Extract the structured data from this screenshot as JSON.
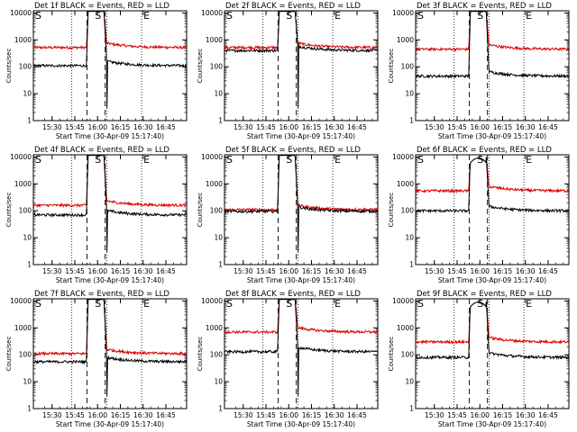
{
  "chart_data": {
    "type": "line",
    "ylabel": "Counts/sec",
    "xlabel": "Start Time (30-Apr-09 15:17:40)",
    "xticks": [
      "15:30",
      "15:45",
      "16:00",
      "16:15",
      "16:30",
      "16:45"
    ],
    "ytick_labels": [
      "1",
      "10",
      "100",
      "1000",
      "10000"
    ],
    "ylim": [
      1,
      12000
    ],
    "xlim_minutes_after_start": [
      0,
      101
    ],
    "yscale": "log",
    "markers": {
      "start": "S",
      "end": "E"
    },
    "legend_text": "BLACK = Events, RED = LLD",
    "colors": {
      "events": "#000000",
      "lld": "#dd0000"
    },
    "event_lines_time": [
      "15:53",
      "16:05"
    ],
    "dotted_lines_time": [
      "15:43",
      "16:06",
      "16:29"
    ],
    "panels": [
      {
        "title": "Det 1f BLACK = Events, RED = LLD",
        "events_level": 110,
        "lld_level": 520,
        "peak_shape": "flat-top",
        "events_spike_down": true
      },
      {
        "title": "Det 2f BLACK = Events, RED = LLD",
        "events_level": 400,
        "lld_level": 520,
        "peak_shape": "flat-top",
        "events_spike_down": true
      },
      {
        "title": "Det 3f BLACK = Events, RED = LLD",
        "events_level": 45,
        "lld_level": 450,
        "peak_shape": "flat-top",
        "events_spike_down": false
      },
      {
        "title": "Det 4f BLACK = Events, RED = LLD",
        "events_level": 70,
        "lld_level": 160,
        "peak_shape": "flat-top",
        "events_spike_down": true
      },
      {
        "title": "Det 5f BLACK = Events, RED = LLD",
        "events_level": 95,
        "lld_level": 110,
        "peak_shape": "flat-top",
        "events_spike_down": true
      },
      {
        "title": "Det 6f BLACK = Events, RED = LLD",
        "events_level": 100,
        "lld_level": 550,
        "peak_shape": "rounded",
        "events_spike_down": false
      },
      {
        "title": "Det 7f BLACK = Events, RED = LLD",
        "events_level": 55,
        "lld_level": 110,
        "peak_shape": "flat-top",
        "events_spike_down": true
      },
      {
        "title": "Det 8f BLACK = Events, RED = LLD",
        "events_level": 130,
        "lld_level": 700,
        "peak_shape": "flat-top",
        "events_spike_down": true
      },
      {
        "title": "Det 9f BLACK = Events, RED = LLD",
        "events_level": 80,
        "lld_level": 300,
        "peak_shape": "rounded",
        "events_spike_down": false
      }
    ]
  }
}
